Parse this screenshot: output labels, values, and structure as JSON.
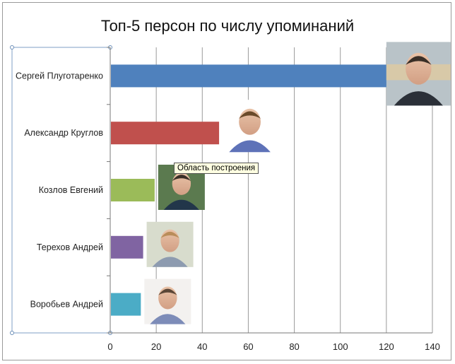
{
  "tooltip": "Область построения",
  "chart_data": {
    "type": "bar",
    "orientation": "horizontal",
    "title": "Топ-5 персон по числу упоминаний",
    "categories": [
      "Сергей Плуготаренко",
      "Александр Круглов",
      "Козлов Евгений",
      "Терехов Андрей",
      "Воробьев Андрей"
    ],
    "values": [
      120,
      47,
      19,
      14,
      13
    ],
    "colors": [
      "#4f81bd",
      "#c0504d",
      "#9bbb59",
      "#8064a2",
      "#4bacc6"
    ],
    "xlim": [
      0,
      140
    ],
    "xticks": [
      0,
      20,
      40,
      60,
      80,
      100,
      120,
      140
    ],
    "grid": true,
    "legend": "none"
  }
}
